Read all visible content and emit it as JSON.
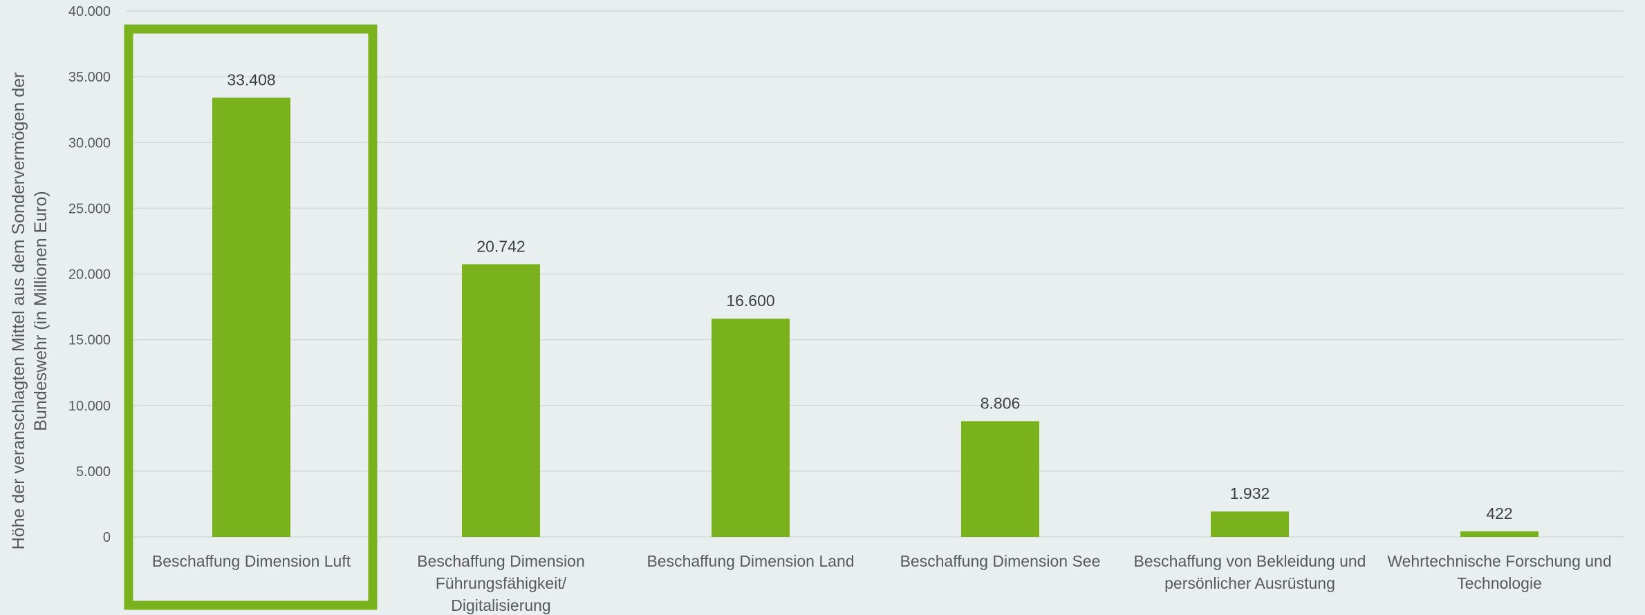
{
  "chart_data": {
    "type": "bar",
    "title": "",
    "xlabel": "",
    "ylabel": "Höhe der veranschlagten Mittel aus dem Sondervermögen der Bundeswehr (in Millionen Euro)",
    "ylabel_lines": [
      "Höhe der veranschlagten Mittel aus dem Sondervermögen der",
      "Bundeswehr (in Millionen Euro)"
    ],
    "ylim": [
      0,
      40000
    ],
    "yticks": [
      0,
      5000,
      10000,
      15000,
      20000,
      25000,
      30000,
      35000,
      40000
    ],
    "ytick_labels": [
      "0",
      "5.000",
      "10.000",
      "15.000",
      "20.000",
      "25.000",
      "30.000",
      "35.000",
      "40.000"
    ],
    "categories": [
      "Beschaffung Dimension Luft",
      "Beschaffung Dimension Führungsfähigkeit/ Digitalisierung",
      "Beschaffung Dimension Land",
      "Beschaffung Dimension See",
      "Beschaffung von Bekleidung und persönlicher Ausrüstung",
      "Wehrtechnische Forschung und Technologie"
    ],
    "category_label_lines": [
      [
        "Beschaffung Dimension Luft"
      ],
      [
        "Beschaffung Dimension",
        "Führungsfähigkeit/",
        "Digitalisierung"
      ],
      [
        "Beschaffung Dimension Land"
      ],
      [
        "Beschaffung Dimension See"
      ],
      [
        "Beschaffung von Bekleidung und",
        "persönlicher Ausrüstung"
      ],
      [
        "Wehrtechnische Forschung und",
        "Technologie"
      ]
    ],
    "values": [
      33408,
      20742,
      16600,
      8806,
      1932,
      422
    ],
    "data_labels": [
      "33.408",
      "20.742",
      "16.600",
      "8.806",
      "1.932",
      "422"
    ],
    "highlighted_category": "Beschaffung Dimension Luft",
    "grid": true,
    "legend": "none",
    "colors": {
      "bar": "#7ab21e",
      "highlight_frame": "#7ab21e",
      "gridline": "#d5d9d9",
      "background": "#e9eeee"
    }
  }
}
